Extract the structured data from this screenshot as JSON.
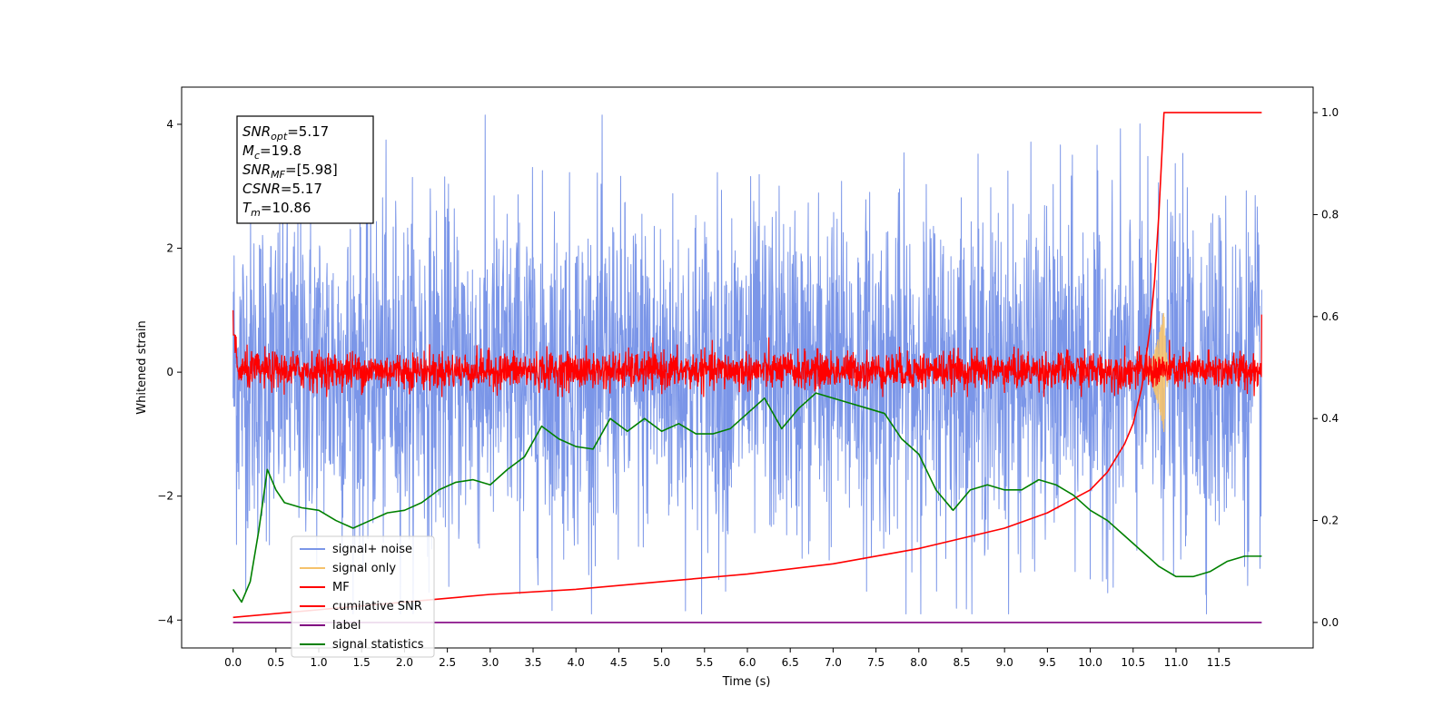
{
  "chart_data": {
    "type": "line",
    "xlabel": "Time (s)",
    "ylabel": "Whitened strain",
    "xlim": [
      -0.6,
      12.6
    ],
    "ylim": [
      -4.45,
      4.6
    ],
    "y2lim": [
      -0.05,
      1.05
    ],
    "xticks": [
      "0.0",
      "0.5",
      "1.0",
      "1.5",
      "2.0",
      "2.5",
      "3.0",
      "3.5",
      "4.0",
      "4.5",
      "5.0",
      "5.5",
      "6.0",
      "6.5",
      "7.0",
      "7.5",
      "8.0",
      "8.5",
      "9.0",
      "9.5",
      "10.0",
      "10.5",
      "11.0",
      "11.5"
    ],
    "yticks": [
      "4",
      "2",
      "0",
      "−2",
      "−4"
    ],
    "y2ticks": [
      "1.0",
      "0.8",
      "0.6",
      "0.4",
      "0.2",
      "0.0"
    ],
    "grid": false,
    "legend_position": "lower-left",
    "annotation": {
      "lines": [
        {
          "sym": "SNR",
          "sub": "opt",
          "val": "=5.17"
        },
        {
          "sym": "M",
          "sub": "c",
          "val": "=19.8"
        },
        {
          "sym": "SNR",
          "sub": "MF",
          "val": "=[5.98]"
        },
        {
          "sym": "CSNR",
          "sub": "",
          "val": "=5.17"
        },
        {
          "sym": "T",
          "sub": "m",
          "val": "=10.86"
        }
      ]
    },
    "series": [
      {
        "name": "signal+ noise",
        "color": "#7b96e8",
        "axis": "left",
        "t_range": [
          0.0,
          12.0
        ],
        "band": [
          -2.0,
          2.0
        ],
        "peaks_max": 4.15,
        "troughs_min": -3.9
      },
      {
        "name": "signal only",
        "color": "#f5c26b",
        "axis": "left",
        "t_range": [
          10.6,
          10.95
        ],
        "peak_t": 10.86,
        "peak_amp": 1.0
      },
      {
        "name": "MF",
        "color": "#ff0000",
        "axis": "left",
        "t_range": [
          0.0,
          12.0
        ],
        "band": [
          -0.25,
          0.3
        ],
        "start_value": 1.0,
        "end_value": 0.93
      },
      {
        "name": "cumilative SNR",
        "color": "#ff0000",
        "axis": "right",
        "x": [
          0.0,
          1.0,
          2.0,
          3.0,
          4.0,
          5.0,
          6.0,
          7.0,
          8.0,
          9.0,
          9.5,
          10.0,
          10.2,
          10.4,
          10.5,
          10.6,
          10.7,
          10.75,
          10.8,
          10.86,
          12.0
        ],
        "y": [
          0.01,
          0.025,
          0.04,
          0.055,
          0.065,
          0.08,
          0.095,
          0.115,
          0.145,
          0.185,
          0.215,
          0.26,
          0.295,
          0.35,
          0.39,
          0.46,
          0.58,
          0.67,
          0.8,
          1.0,
          1.0
        ]
      },
      {
        "name": "label",
        "color": "#800080",
        "axis": "right",
        "x": [
          0.0,
          12.0
        ],
        "y": [
          0.0,
          0.0
        ]
      },
      {
        "name": "signal statistics",
        "color": "#008000",
        "axis": "right",
        "x": [
          0.0,
          0.1,
          0.2,
          0.3,
          0.4,
          0.5,
          0.6,
          0.8,
          1.0,
          1.2,
          1.4,
          1.6,
          1.8,
          2.0,
          2.2,
          2.4,
          2.6,
          2.8,
          3.0,
          3.2,
          3.4,
          3.6,
          3.8,
          4.0,
          4.2,
          4.4,
          4.6,
          4.8,
          5.0,
          5.2,
          5.4,
          5.6,
          5.8,
          6.0,
          6.2,
          6.4,
          6.6,
          6.8,
          7.0,
          7.2,
          7.4,
          7.6,
          7.8,
          8.0,
          8.2,
          8.4,
          8.6,
          8.8,
          9.0,
          9.2,
          9.4,
          9.6,
          9.8,
          10.0,
          10.2,
          10.4,
          10.6,
          10.8,
          11.0,
          11.2,
          11.4,
          11.6,
          11.8,
          12.0
        ],
        "y": [
          0.065,
          0.04,
          0.08,
          0.18,
          0.3,
          0.26,
          0.235,
          0.225,
          0.22,
          0.2,
          0.185,
          0.2,
          0.215,
          0.22,
          0.235,
          0.26,
          0.275,
          0.28,
          0.27,
          0.3,
          0.325,
          0.385,
          0.36,
          0.345,
          0.34,
          0.4,
          0.375,
          0.4,
          0.375,
          0.39,
          0.37,
          0.37,
          0.38,
          0.41,
          0.44,
          0.38,
          0.42,
          0.45,
          0.44,
          0.43,
          0.42,
          0.41,
          0.36,
          0.33,
          0.26,
          0.22,
          0.26,
          0.27,
          0.26,
          0.26,
          0.28,
          0.27,
          0.25,
          0.22,
          0.2,
          0.17,
          0.14,
          0.11,
          0.09,
          0.09,
          0.1,
          0.12,
          0.13,
          0.13
        ]
      }
    ]
  }
}
